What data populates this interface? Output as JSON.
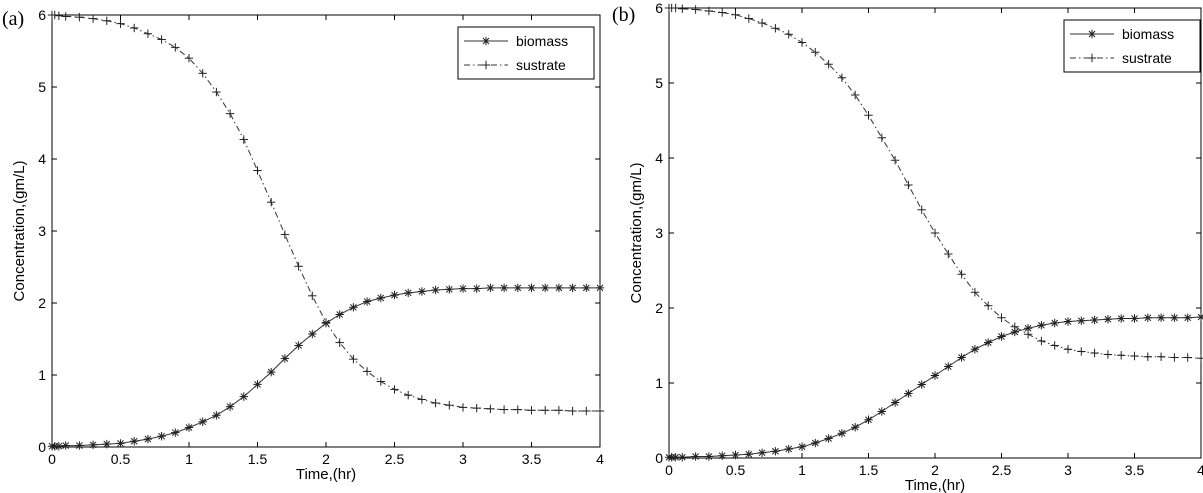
{
  "chart_data": [
    {
      "panel_label": "(a)",
      "type": "line",
      "xlabel": "Time,(hr)",
      "ylabel": "Concentration,(gm/L)",
      "xlim": [
        0,
        4
      ],
      "ylim": [
        0,
        6
      ],
      "xticks": [
        "0",
        "0.5",
        "1",
        "1.5",
        "2",
        "2.5",
        "3",
        "3.5",
        "4"
      ],
      "yticks": [
        "0",
        "1",
        "2",
        "3",
        "4",
        "5",
        "6"
      ],
      "grid": false,
      "legend_position": "top-right",
      "series": [
        {
          "name": "biomass",
          "style": "solid",
          "marker": "asterisk",
          "x": [
            0,
            0.02,
            0.05,
            0.1,
            0.2,
            0.3,
            0.4,
            0.5,
            0.6,
            0.7,
            0.8,
            0.9,
            1.0,
            1.1,
            1.2,
            1.3,
            1.4,
            1.5,
            1.6,
            1.7,
            1.8,
            1.9,
            2.0,
            2.1,
            2.2,
            2.3,
            2.4,
            2.5,
            2.6,
            2.7,
            2.8,
            2.9,
            3.0,
            3.1,
            3.2,
            3.3,
            3.4,
            3.5,
            3.6,
            3.7,
            3.8,
            3.9,
            4.0
          ],
          "y": [
            0.01,
            0.01,
            0.01,
            0.02,
            0.02,
            0.03,
            0.04,
            0.05,
            0.08,
            0.11,
            0.15,
            0.2,
            0.27,
            0.35,
            0.44,
            0.56,
            0.7,
            0.87,
            1.04,
            1.23,
            1.41,
            1.57,
            1.72,
            1.84,
            1.94,
            2.02,
            2.07,
            2.11,
            2.14,
            2.16,
            2.18,
            2.19,
            2.2,
            2.2,
            2.21,
            2.21,
            2.21,
            2.21,
            2.21,
            2.21,
            2.21,
            2.21,
            2.21
          ]
        },
        {
          "name": "sustrate",
          "style": "dashdot",
          "marker": "plus",
          "x": [
            0,
            0.02,
            0.05,
            0.1,
            0.2,
            0.3,
            0.4,
            0.5,
            0.6,
            0.7,
            0.8,
            0.9,
            1.0,
            1.1,
            1.2,
            1.3,
            1.4,
            1.5,
            1.6,
            1.7,
            1.8,
            1.9,
            2.0,
            2.1,
            2.2,
            2.3,
            2.4,
            2.5,
            2.6,
            2.7,
            2.8,
            2.9,
            3.0,
            3.1,
            3.2,
            3.3,
            3.4,
            3.5,
            3.6,
            3.7,
            3.8,
            3.9,
            4.0
          ],
          "y": [
            6.0,
            6.0,
            5.99,
            5.98,
            5.97,
            5.95,
            5.92,
            5.88,
            5.82,
            5.74,
            5.66,
            5.55,
            5.4,
            5.19,
            4.93,
            4.63,
            4.27,
            3.84,
            3.4,
            2.95,
            2.51,
            2.1,
            1.73,
            1.45,
            1.22,
            1.05,
            0.91,
            0.8,
            0.72,
            0.66,
            0.61,
            0.58,
            0.55,
            0.54,
            0.53,
            0.52,
            0.52,
            0.51,
            0.51,
            0.51,
            0.5,
            0.5,
            0.5
          ]
        }
      ]
    },
    {
      "panel_label": "(b)",
      "type": "line",
      "xlabel": "Time,(hr)",
      "ylabel": "Concentration,(gm/L)",
      "xlim": [
        0,
        4
      ],
      "ylim": [
        0,
        6
      ],
      "xticks": [
        "0",
        "0.5",
        "1",
        "1.5",
        "2",
        "2.5",
        "3",
        "3.5",
        "4"
      ],
      "yticks": [
        "0",
        "1",
        "2",
        "3",
        "4",
        "5",
        "6"
      ],
      "grid": false,
      "legend_position": "top-right",
      "series": [
        {
          "name": "biomass",
          "style": "solid",
          "marker": "asterisk",
          "x": [
            0,
            0.02,
            0.05,
            0.1,
            0.2,
            0.3,
            0.4,
            0.5,
            0.6,
            0.7,
            0.8,
            0.9,
            1.0,
            1.1,
            1.2,
            1.3,
            1.4,
            1.5,
            1.6,
            1.7,
            1.8,
            1.9,
            2.0,
            2.1,
            2.2,
            2.3,
            2.4,
            2.5,
            2.6,
            2.7,
            2.8,
            2.9,
            3.0,
            3.1,
            3.2,
            3.3,
            3.4,
            3.5,
            3.6,
            3.7,
            3.8,
            3.9,
            4.0
          ],
          "y": [
            0.01,
            0.01,
            0.01,
            0.01,
            0.02,
            0.02,
            0.03,
            0.04,
            0.05,
            0.07,
            0.09,
            0.12,
            0.15,
            0.2,
            0.26,
            0.33,
            0.41,
            0.51,
            0.62,
            0.74,
            0.86,
            0.98,
            1.1,
            1.22,
            1.34,
            1.45,
            1.54,
            1.62,
            1.68,
            1.73,
            1.77,
            1.8,
            1.82,
            1.83,
            1.84,
            1.85,
            1.86,
            1.86,
            1.87,
            1.87,
            1.87,
            1.87,
            1.88
          ]
        },
        {
          "name": "sustrate",
          "style": "dashdot",
          "marker": "plus",
          "x": [
            0,
            0.02,
            0.05,
            0.1,
            0.2,
            0.3,
            0.4,
            0.5,
            0.6,
            0.7,
            0.8,
            0.9,
            1.0,
            1.1,
            1.2,
            1.3,
            1.4,
            1.5,
            1.6,
            1.7,
            1.8,
            1.9,
            2.0,
            2.1,
            2.2,
            2.3,
            2.4,
            2.5,
            2.6,
            2.7,
            2.8,
            2.9,
            3.0,
            3.1,
            3.2,
            3.3,
            3.4,
            3.5,
            3.6,
            3.7,
            3.8,
            3.9,
            4.0
          ],
          "y": [
            6.0,
            6.0,
            6.0,
            5.99,
            5.98,
            5.96,
            5.94,
            5.91,
            5.86,
            5.8,
            5.73,
            5.65,
            5.54,
            5.41,
            5.25,
            5.07,
            4.84,
            4.57,
            4.27,
            3.97,
            3.64,
            3.31,
            3.0,
            2.72,
            2.45,
            2.21,
            2.03,
            1.87,
            1.75,
            1.65,
            1.56,
            1.5,
            1.45,
            1.42,
            1.4,
            1.38,
            1.37,
            1.36,
            1.35,
            1.35,
            1.34,
            1.34,
            1.33
          ]
        }
      ]
    }
  ]
}
